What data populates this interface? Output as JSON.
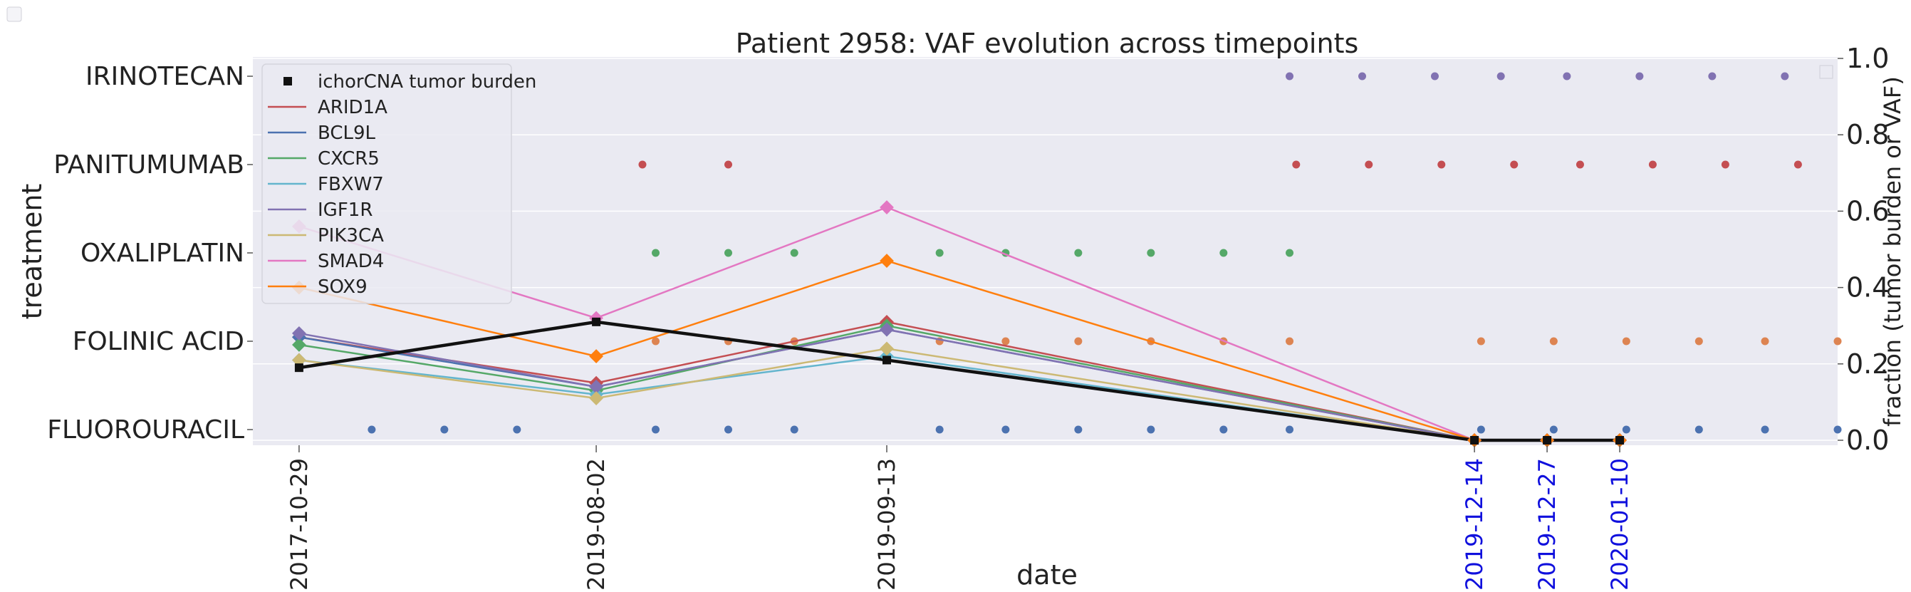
{
  "chart_data": {
    "type": "line",
    "title": "Patient 2958: VAF evolution across timepoints",
    "xlabel": "date",
    "ylabel_left": "treatment",
    "ylabel_right": "fraction (tumor burden or VAF)",
    "yticks_right": [
      "0.0",
      "0.2",
      "0.4",
      "0.6",
      "0.8",
      "1.0"
    ],
    "ylim_right": [
      0.0,
      1.0
    ],
    "treatments": [
      "FLUOROURACIL",
      "FOLINIC ACID",
      "OXALIPLATIN",
      "PANITUMUMAB",
      "IRINOTECAN"
    ],
    "timepoints": [
      {
        "date": "2017-10-29",
        "highlight": false
      },
      {
        "date": "2019-08-02",
        "highlight": false
      },
      {
        "date": "2019-09-13",
        "highlight": false
      },
      {
        "date": "2019-12-14",
        "highlight": true
      },
      {
        "date": "2019-12-27",
        "highlight": true
      },
      {
        "date": "2020-01-10",
        "highlight": true
      }
    ],
    "timepoint_positions": [
      0.7,
      5.2,
      9.6,
      18.5,
      19.6,
      20.7
    ],
    "x_range": [
      0,
      24
    ],
    "tumor_burden": {
      "name": "ichorCNA tumor burden",
      "color": "#111111",
      "values": [
        0.19,
        0.31,
        0.21,
        0.0,
        0.0,
        0.0
      ]
    },
    "series": [
      {
        "name": "ARID1A",
        "color": "#c44e52",
        "values": [
          0.27,
          0.15,
          0.31,
          0.0,
          0.0,
          0.0
        ]
      },
      {
        "name": "BCL9L",
        "color": "#4c72b0",
        "values": [
          0.27,
          0.14,
          0.29,
          0.0,
          0.0,
          0.0
        ]
      },
      {
        "name": "CXCR5",
        "color": "#55a868",
        "values": [
          0.25,
          0.13,
          0.3,
          0.0,
          0.0,
          0.0
        ]
      },
      {
        "name": "FBXW7",
        "color": "#64b5cd",
        "values": [
          0.21,
          0.12,
          0.22,
          0.0,
          0.0,
          0.0
        ]
      },
      {
        "name": "IGF1R",
        "color": "#8172b2",
        "values": [
          0.28,
          0.14,
          0.29,
          0.0,
          0.0,
          0.0
        ]
      },
      {
        "name": "PIK3CA",
        "color": "#ccb974",
        "values": [
          0.21,
          0.11,
          0.24,
          0.0,
          0.0,
          0.0
        ]
      },
      {
        "name": "SMAD4",
        "color": "#e377c2",
        "values": [
          0.56,
          0.32,
          0.61,
          0.0,
          0.0,
          0.0
        ]
      },
      {
        "name": "SOX9",
        "color": "#ff7f0e",
        "values": [
          0.4,
          0.22,
          0.47,
          0.0,
          0.0,
          0.0
        ]
      }
    ],
    "treatment_dots": [
      {
        "treatment": "FLUOROURACIL",
        "color": "#4c72b0",
        "x": [
          1.8,
          2.9,
          4.0,
          6.1,
          7.2,
          8.2,
          10.4,
          11.4,
          12.5,
          13.6,
          14.7,
          15.7,
          18.6,
          19.7,
          20.8,
          21.9,
          22.9,
          24.0
        ]
      },
      {
        "treatment": "FOLINIC ACID",
        "color": "#dd8452",
        "x": [
          6.1,
          7.2,
          8.2,
          10.4,
          11.4,
          12.5,
          13.6,
          14.7,
          15.7,
          18.6,
          19.7,
          20.8,
          21.9,
          22.9,
          24.0
        ]
      },
      {
        "treatment": "OXALIPLATIN",
        "color": "#55a868",
        "x": [
          6.1,
          7.2,
          8.2,
          10.4,
          11.4,
          12.5,
          13.6,
          14.7,
          15.7
        ]
      },
      {
        "treatment": "PANITUMUMAB",
        "color": "#c44e52",
        "x": [
          5.9,
          7.2,
          15.8,
          16.9,
          18.0,
          19.1,
          20.1,
          21.2,
          22.3,
          23.4
        ]
      },
      {
        "treatment": "IRINOTECAN",
        "color": "#8172b2",
        "x": [
          15.7,
          16.8,
          17.9,
          18.9,
          19.9,
          21.0,
          22.1,
          23.2
        ]
      }
    ],
    "legend": {
      "position": "upper-left"
    },
    "grid": true
  }
}
